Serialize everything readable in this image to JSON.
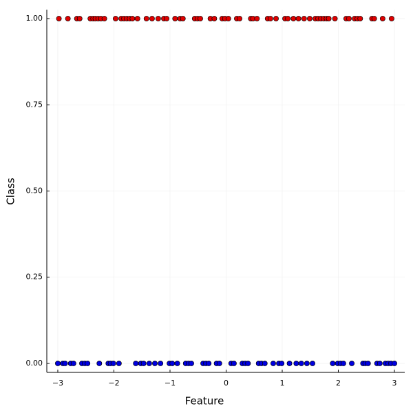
{
  "chart_data": {
    "type": "scatter",
    "xlabel": "Feature",
    "ylabel": "Class",
    "xlim": [
      -3.196,
      3.184
    ],
    "ylim": [
      -0.026,
      1.026
    ],
    "xticks": [
      {
        "value": -3,
        "label": "−3"
      },
      {
        "value": -2,
        "label": "−2"
      },
      {
        "value": -1,
        "label": "−1"
      },
      0,
      1,
      2,
      3
    ],
    "yticks": [
      {
        "value": 0,
        "label": "0.00"
      },
      {
        "value": 0.25,
        "label": "0.25"
      },
      {
        "value": 0.5,
        "label": "0.50"
      },
      {
        "value": 0.75,
        "label": "0.75"
      },
      {
        "value": 1,
        "label": "1.00"
      }
    ],
    "grid": true,
    "series": [
      {
        "color": "#e00000",
        "x": [
          -2.98,
          -2.82,
          -2.66,
          -2.61,
          -2.42,
          -2.37,
          -2.33,
          -2.28,
          -2.23,
          -2.17,
          -1.97,
          -1.87,
          -1.82,
          -1.77,
          -1.72,
          -1.67,
          -1.58,
          -1.42,
          -1.32,
          -1.21,
          -1.11,
          -1.06,
          -0.91,
          -0.82,
          -0.77,
          -0.56,
          -0.51,
          -0.46,
          -0.28,
          -0.21,
          -0.07,
          -0.02,
          0.04,
          0.19,
          0.24,
          0.44,
          0.48,
          0.55,
          0.74,
          0.79,
          0.89,
          1.05,
          1.1,
          1.2,
          1.29,
          1.39,
          1.49,
          1.59,
          1.64,
          1.69,
          1.74,
          1.79,
          1.83,
          1.94,
          2.14,
          2.19,
          2.29,
          2.34,
          2.39,
          2.6,
          2.64,
          2.79,
          2.95
        ],
        "values": [
          1,
          1,
          1,
          1,
          1,
          1,
          1,
          1,
          1,
          1,
          1,
          1,
          1,
          1,
          1,
          1,
          1,
          1,
          1,
          1,
          1,
          1,
          1,
          1,
          1,
          1,
          1,
          1,
          1,
          1,
          1,
          1,
          1,
          1,
          1,
          1,
          1,
          1,
          1,
          1,
          1,
          1,
          1,
          1,
          1,
          1,
          1,
          1,
          1,
          1,
          1,
          1,
          1,
          1,
          1,
          1,
          1,
          1,
          1,
          1,
          1,
          1,
          1
        ]
      },
      {
        "color": "#0000e0",
        "x": [
          -3.0,
          -2.91,
          -2.87,
          -2.77,
          -2.72,
          -2.57,
          -2.52,
          -2.47,
          -2.26,
          -2.1,
          -2.06,
          -2.01,
          -1.91,
          -1.61,
          -1.52,
          -1.47,
          -1.37,
          -1.27,
          -1.17,
          -1.01,
          -0.96,
          -0.87,
          -0.72,
          -0.67,
          -0.62,
          -0.41,
          -0.36,
          -0.31,
          -0.17,
          -0.12,
          0.09,
          0.14,
          0.29,
          0.34,
          0.39,
          0.58,
          0.63,
          0.69,
          0.84,
          0.94,
          0.99,
          1.13,
          1.25,
          1.34,
          1.44,
          1.54,
          1.9,
          1.99,
          2.04,
          2.09,
          2.24,
          2.44,
          2.48,
          2.53,
          2.69,
          2.74,
          2.84,
          2.89,
          2.94,
          3.0
        ],
        "values": [
          0,
          0,
          0,
          0,
          0,
          0,
          0,
          0,
          0,
          0,
          0,
          0,
          0,
          0,
          0,
          0,
          0,
          0,
          0,
          0,
          0,
          0,
          0,
          0,
          0,
          0,
          0,
          0,
          0,
          0,
          0,
          0,
          0,
          0,
          0,
          0,
          0,
          0,
          0,
          0,
          0,
          0,
          0,
          0,
          0,
          0,
          0,
          0,
          0,
          0,
          0,
          0,
          0,
          0,
          0,
          0,
          0,
          0,
          0,
          0
        ]
      }
    ]
  }
}
